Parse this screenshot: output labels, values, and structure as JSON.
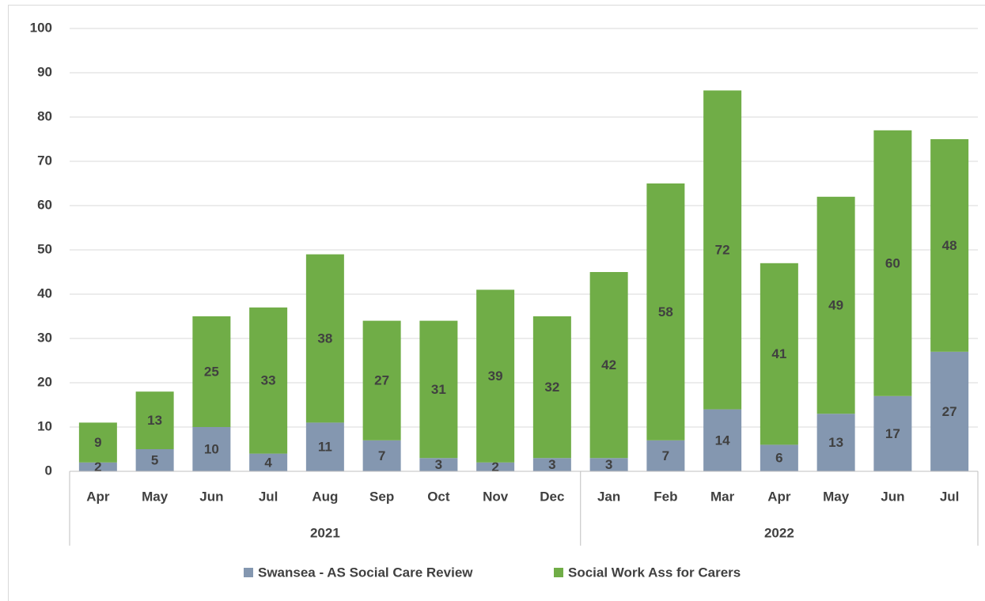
{
  "chart_data": {
    "type": "stacked_bar",
    "categories": [
      "Apr",
      "May",
      "Jun",
      "Jul",
      "Aug",
      "Sep",
      "Oct",
      "Nov",
      "Dec",
      "Jan",
      "Feb",
      "Mar",
      "Apr",
      "May",
      "Jun",
      "Jul"
    ],
    "year_groups": [
      {
        "label": "2021",
        "span": 9
      },
      {
        "label": "2022",
        "span": 7
      }
    ],
    "series": [
      {
        "name": "Swansea - AS Social Care Review",
        "color": "#8497b0",
        "values": [
          2,
          5,
          10,
          4,
          11,
          7,
          3,
          2,
          3,
          3,
          7,
          14,
          6,
          13,
          17,
          27
        ]
      },
      {
        "name": "Social Work Ass for Carers",
        "color": "#70ad47",
        "values": [
          9,
          13,
          25,
          33,
          38,
          27,
          31,
          39,
          32,
          42,
          58,
          72,
          41,
          49,
          60,
          48
        ]
      }
    ],
    "ylim": [
      0,
      100
    ],
    "yticks": [
      0,
      10,
      20,
      30,
      40,
      50,
      60,
      70,
      80,
      90,
      100
    ],
    "grid": true,
    "legend": "bottom"
  }
}
